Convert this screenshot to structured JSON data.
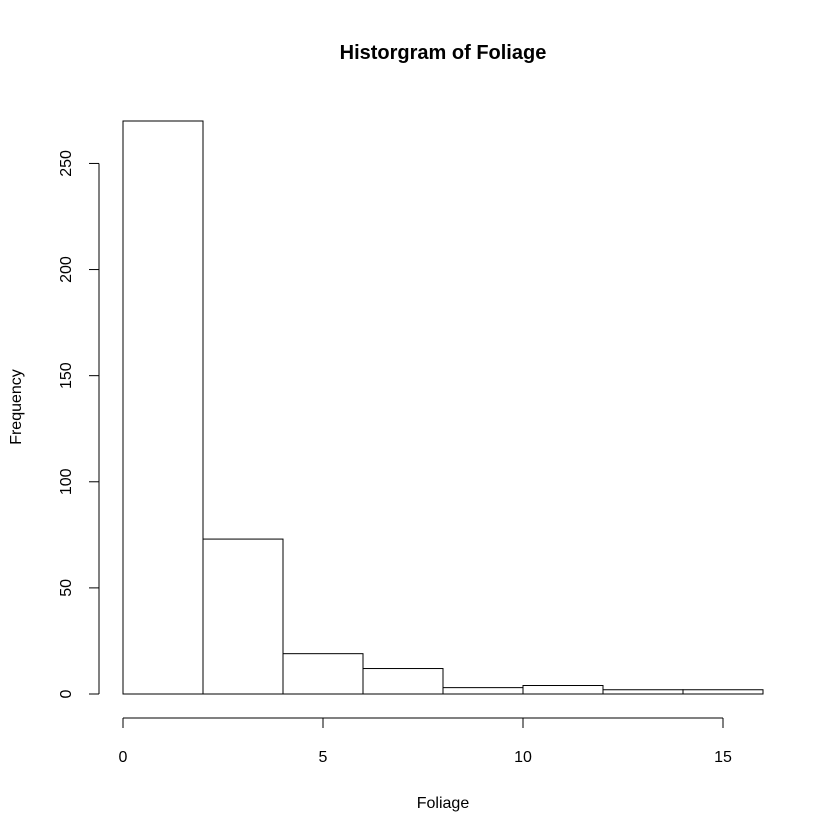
{
  "chart_data": {
    "type": "histogram",
    "title": "Historgram of Foliage",
    "xlabel": "Foliage",
    "ylabel": "Frequency",
    "bin_edges": [
      0,
      2,
      4,
      6,
      8,
      10,
      12,
      14,
      16
    ],
    "values": [
      270,
      73,
      19,
      12,
      3,
      4,
      2,
      2
    ],
    "xlim": [
      0,
      16
    ],
    "ylim": [
      0,
      270
    ],
    "x_ticks": [
      0,
      5,
      10,
      15
    ],
    "y_ticks": [
      0,
      50,
      100,
      150,
      200,
      250
    ],
    "grid": false,
    "colors": {
      "bar_fill": "#ffffff",
      "bar_stroke": "#000000"
    }
  }
}
